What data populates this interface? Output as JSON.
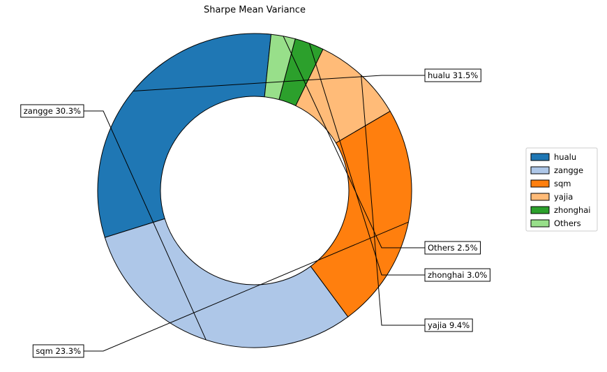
{
  "chart_data": {
    "type": "pie",
    "title": "Sharpe Mean Variance",
    "donut": true,
    "legend_position": "right",
    "slices": [
      {
        "name": "hualu",
        "value": 31.5,
        "label": "hualu 31.5%",
        "color": "#1f77b4"
      },
      {
        "name": "zangge",
        "value": 30.3,
        "label": "zangge 30.3%",
        "color": "#aec7e8"
      },
      {
        "name": "sqm",
        "value": 23.3,
        "label": "sqm 23.3%",
        "color": "#ff7f0e"
      },
      {
        "name": "yajia",
        "value": 9.4,
        "label": "yajia 9.4%",
        "color": "#ffbb78"
      },
      {
        "name": "zhonghai",
        "value": 3.0,
        "label": "zhonghai 3.0%",
        "color": "#2ca02c"
      },
      {
        "name": "Others",
        "value": 2.5,
        "label": "Others 2.5%",
        "color": "#98df8a"
      }
    ]
  }
}
